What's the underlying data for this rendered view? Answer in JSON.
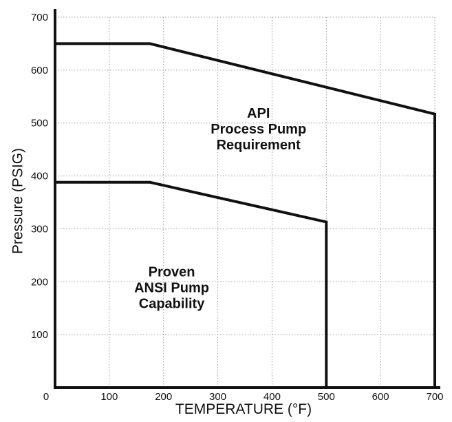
{
  "chart_data": {
    "type": "line",
    "title": "",
    "xlabel": "TEMPERATURE (°F)",
    "ylabel": "Pressure (PSIG)",
    "xlim": [
      0,
      700
    ],
    "ylim": [
      0,
      700
    ],
    "x_ticks": [
      0,
      100,
      200,
      300,
      400,
      500,
      600,
      700
    ],
    "y_ticks": [
      100,
      200,
      300,
      400,
      500,
      600,
      700
    ],
    "x_tick_labels": [
      "0",
      "100",
      "200",
      "300",
      "400",
      "500",
      "600",
      "700"
    ],
    "y_tick_labels": [
      "100",
      "200",
      "300",
      "400",
      "500",
      "600",
      "700"
    ],
    "grid": true,
    "legend": "none",
    "line_color": "#111111",
    "series": [
      {
        "points": [
          {
            "x": 0,
            "y": 650
          },
          {
            "x": 175,
            "y": 650
          },
          {
            "x": 700,
            "y": 517
          },
          {
            "x": 700,
            "y": 0
          }
        ]
      },
      {
        "points": [
          {
            "x": 0,
            "y": 388
          },
          {
            "x": 175,
            "y": 388
          },
          {
            "x": 500,
            "y": 313
          },
          {
            "x": 500,
            "y": 0
          }
        ]
      }
    ],
    "annotations": [
      {
        "lines": [
          "API",
          "Process Pump",
          "Requirement"
        ],
        "x": 375,
        "y": 480
      },
      {
        "lines": [
          "Proven",
          "ANSI Pump",
          "Capability"
        ],
        "x": 215,
        "y": 180
      }
    ]
  }
}
